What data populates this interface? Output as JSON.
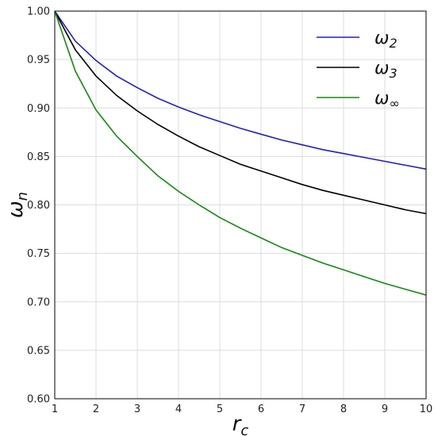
{
  "chart_data": {
    "type": "line",
    "xlabel": "r_c",
    "ylabel": "ω_n",
    "xlim": [
      1,
      10
    ],
    "ylim": [
      0.6,
      1.0
    ],
    "grid": true,
    "legend_position": "top-right",
    "x_ticks": [
      1,
      2,
      3,
      4,
      5,
      6,
      7,
      8,
      9,
      10
    ],
    "y_ticks": [
      0.6,
      0.65,
      0.7,
      0.75,
      0.8,
      0.85,
      0.9,
      0.95,
      1.0
    ],
    "x_tick_labels": [
      "1",
      "2",
      "3",
      "4",
      "5",
      "6",
      "7",
      "8",
      "9",
      "10"
    ],
    "y_tick_labels": [
      "0.60",
      "0.65",
      "0.70",
      "0.75",
      "0.80",
      "0.85",
      "0.90",
      "0.95",
      "1.00"
    ],
    "series": [
      {
        "name": "ω2",
        "color": "#1f1fc8",
        "x": [
          1,
          1.5,
          2,
          2.5,
          3,
          3.5,
          4,
          4.5,
          5,
          5.5,
          6,
          6.5,
          7,
          7.5,
          8,
          8.5,
          9,
          9.5,
          10
        ],
        "y": [
          1.0,
          0.969,
          0.949,
          0.933,
          0.921,
          0.91,
          0.901,
          0.893,
          0.886,
          0.879,
          0.873,
          0.867,
          0.862,
          0.857,
          0.853,
          0.849,
          0.845,
          0.841,
          0.837
        ]
      },
      {
        "name": "ω3",
        "color": "#000000",
        "x": [
          1,
          1.5,
          2,
          2.5,
          3,
          3.5,
          4,
          4.5,
          5,
          5.5,
          6,
          6.5,
          7,
          7.5,
          8,
          8.5,
          9,
          9.5,
          10
        ],
        "y": [
          1.0,
          0.96,
          0.933,
          0.913,
          0.897,
          0.883,
          0.871,
          0.86,
          0.851,
          0.842,
          0.835,
          0.828,
          0.821,
          0.815,
          0.81,
          0.805,
          0.8,
          0.795,
          0.791
        ]
      },
      {
        "name": "ω∞",
        "color": "#128a12",
        "x": [
          1,
          1.5,
          2,
          2.5,
          3,
          3.5,
          4,
          4.5,
          5,
          5.5,
          6,
          6.5,
          7,
          7.5,
          8,
          8.5,
          9,
          9.5,
          10
        ],
        "y": [
          1.0,
          0.938,
          0.898,
          0.871,
          0.85,
          0.83,
          0.814,
          0.8,
          0.787,
          0.776,
          0.766,
          0.756,
          0.748,
          0.74,
          0.733,
          0.726,
          0.719,
          0.713,
          0.707
        ]
      }
    ]
  }
}
